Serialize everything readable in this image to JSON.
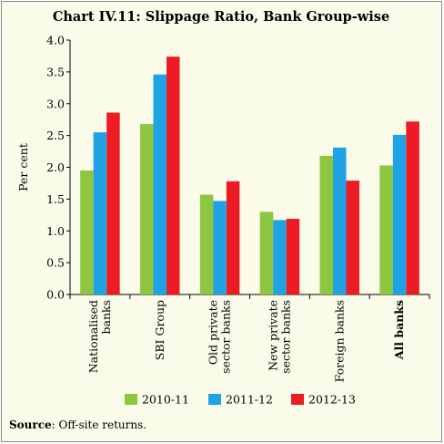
{
  "title": "Chart IV.11: Slippage Ratio, Bank Group-wise",
  "source": {
    "label": "Source",
    "text": ": Off-site returns."
  },
  "colors": {
    "2010-11": "#8dc63f",
    "2011-12": "#1fa3e5",
    "2012-13": "#ed1c24",
    "background": "#fbfbe9"
  },
  "chart_data": {
    "type": "bar",
    "ylabel": "Per cent",
    "xlabel": "",
    "ylim": [
      0.0,
      4.0
    ],
    "yticks": [
      "0.0",
      "0.5",
      "1.0",
      "1.5",
      "2.0",
      "2.5",
      "3.0",
      "3.5",
      "4.0"
    ],
    "grid": false,
    "legend_position": "bottom",
    "categories": [
      [
        "Nationalised",
        "banks"
      ],
      [
        "SBI Group"
      ],
      [
        "Old private",
        "sector banks"
      ],
      [
        "New private",
        "sector banks"
      ],
      [
        "Foreign banks"
      ],
      [
        "All banks"
      ]
    ],
    "bold_categories": [
      5
    ],
    "series": [
      {
        "name": "2010-11",
        "values": [
          1.95,
          2.68,
          1.57,
          1.3,
          2.18,
          2.03
        ]
      },
      {
        "name": "2011-12",
        "values": [
          2.55,
          3.46,
          1.47,
          1.17,
          2.31,
          2.51
        ]
      },
      {
        "name": "2012-13",
        "values": [
          2.86,
          3.74,
          1.78,
          1.19,
          1.79,
          2.72
        ]
      }
    ]
  }
}
